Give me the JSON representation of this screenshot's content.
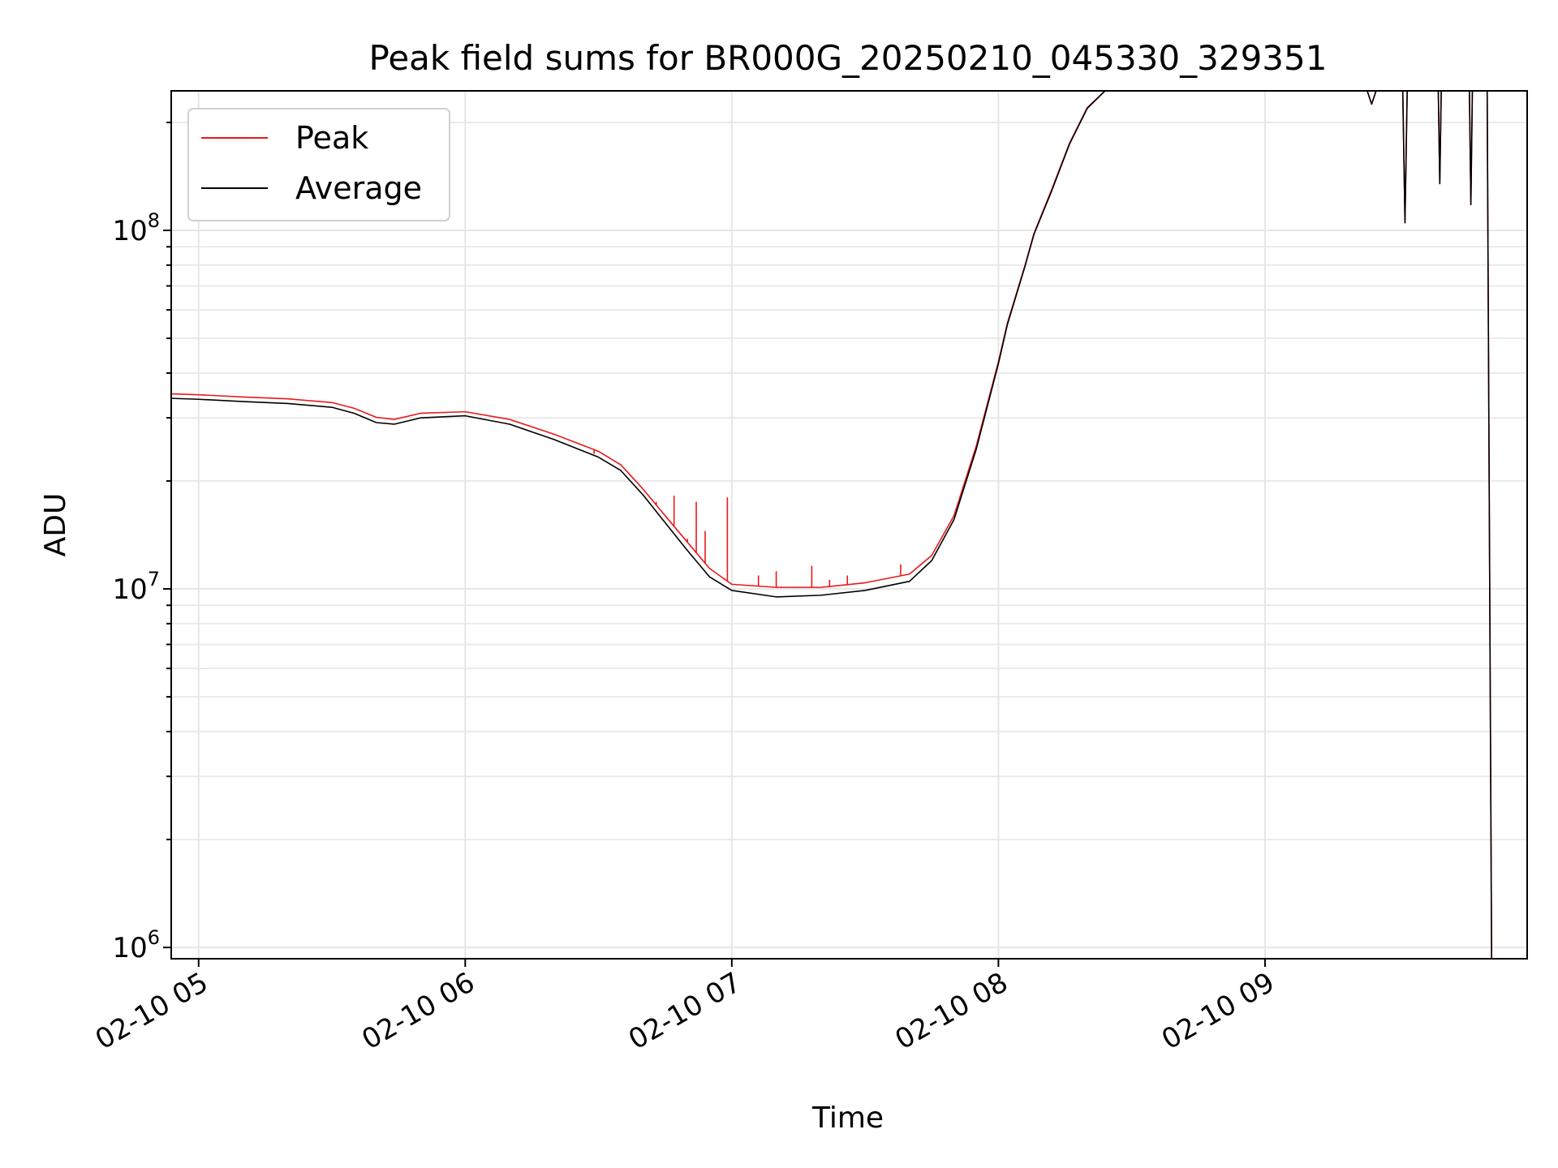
{
  "chart_data": {
    "type": "line",
    "title": "Peak field sums for BR000G_20250210_045330_329351",
    "xlabel": "Time",
    "ylabel": "ADU",
    "yscale": "log",
    "ylim": [
      930000,
      245000000
    ],
    "xlim": [
      "02-10 04:53:50",
      "02-10 09:59:00"
    ],
    "grid": true,
    "legend_position": "top-left",
    "xticks": [
      {
        "value": "02-10 05:00",
        "label": "02-10 05"
      },
      {
        "value": "02-10 06:00",
        "label": "02-10 06"
      },
      {
        "value": "02-10 07:00",
        "label": "02-10 07"
      },
      {
        "value": "02-10 08:00",
        "label": "02-10 08"
      },
      {
        "value": "02-10 09:00",
        "label": "02-10 09"
      }
    ],
    "yticks": [
      {
        "value": 1000000,
        "base": "10",
        "exp": "6"
      },
      {
        "value": 10000000,
        "base": "10",
        "exp": "7"
      },
      {
        "value": 100000000,
        "base": "10",
        "exp": "8"
      }
    ],
    "series": [
      {
        "name": "Peak",
        "color": "#e8191c",
        "points": [
          [
            "02-10 04:54",
            35000000
          ],
          [
            "02-10 05:00",
            34800000
          ],
          [
            "02-10 05:10",
            34300000
          ],
          [
            "02-10 05:20",
            33900000
          ],
          [
            "02-10 05:30",
            33100000
          ],
          [
            "02-10 05:35",
            31900000
          ],
          [
            "02-10 05:40",
            30100000
          ],
          [
            "02-10 05:44",
            29700000
          ],
          [
            "02-10 05:50",
            30900000
          ],
          [
            "02-10 06:00",
            31200000
          ],
          [
            "02-10 06:10",
            29700000
          ],
          [
            "02-10 06:20",
            27000000
          ],
          [
            "02-10 06:30",
            24200000
          ],
          [
            "02-10 06:35",
            22200000
          ],
          [
            "02-10 06:40",
            19000000
          ],
          [
            "02-10 06:45",
            16000000
          ],
          [
            "02-10 06:50",
            13500000
          ],
          [
            "02-10 06:55",
            11400000
          ],
          [
            "02-10 07:00",
            10300000
          ],
          [
            "02-10 07:10",
            10100000
          ],
          [
            "02-10 07:20",
            10100000
          ],
          [
            "02-10 07:30",
            10400000
          ],
          [
            "02-10 07:40",
            11000000
          ],
          [
            "02-10 07:45",
            12400000
          ],
          [
            "02-10 07:50",
            16000000
          ],
          [
            "02-10 07:55",
            25000000
          ],
          [
            "02-10 08:00",
            43000000
          ],
          [
            "02-10 08:02",
            55000000
          ],
          [
            "02-10 08:06",
            80000000
          ],
          [
            "02-10 08:08",
            98000000
          ],
          [
            "02-10 08:12",
            130000000
          ],
          [
            "02-10 08:16",
            175000000
          ],
          [
            "02-10 08:20",
            220000000
          ],
          [
            "02-10 08:24",
            245000000
          ],
          [
            "02-10 09:23",
            245000000
          ],
          [
            "02-10 09:24",
            225000000
          ],
          [
            "02-10 09:25",
            245000000
          ],
          [
            "02-10 09:31",
            245000000
          ],
          [
            "02-10 09:31:30",
            105000000
          ],
          [
            "02-10 09:32",
            245000000
          ],
          [
            "02-10 09:39",
            245000000
          ],
          [
            "02-10 09:39:20",
            135000000
          ],
          [
            "02-10 09:39:40",
            245000000
          ],
          [
            "02-10 09:46",
            245000000
          ],
          [
            "02-10 09:46:20",
            118000000
          ],
          [
            "02-10 09:46:40",
            245000000
          ],
          [
            "02-10 09:50",
            245000000
          ],
          [
            "02-10 09:51",
            930000
          ],
          [
            "02-10 09:59",
            930000
          ]
        ]
      },
      {
        "name": "Average",
        "color": "#000000",
        "points": [
          [
            "02-10 04:54",
            34000000
          ],
          [
            "02-10 05:00",
            33800000
          ],
          [
            "02-10 05:10",
            33300000
          ],
          [
            "02-10 05:20",
            32900000
          ],
          [
            "02-10 05:30",
            32100000
          ],
          [
            "02-10 05:35",
            30900000
          ],
          [
            "02-10 05:40",
            29100000
          ],
          [
            "02-10 05:44",
            28800000
          ],
          [
            "02-10 05:50",
            30000000
          ],
          [
            "02-10 06:00",
            30400000
          ],
          [
            "02-10 06:10",
            28800000
          ],
          [
            "02-10 06:20",
            26100000
          ],
          [
            "02-10 06:30",
            23300000
          ],
          [
            "02-10 06:35",
            21400000
          ],
          [
            "02-10 06:40",
            18300000
          ],
          [
            "02-10 06:45",
            15300000
          ],
          [
            "02-10 06:50",
            12800000
          ],
          [
            "02-10 06:55",
            10800000
          ],
          [
            "02-10 07:00",
            9900000
          ],
          [
            "02-10 07:10",
            9500000
          ],
          [
            "02-10 07:20",
            9600000
          ],
          [
            "02-10 07:30",
            9900000
          ],
          [
            "02-10 07:40",
            10500000
          ],
          [
            "02-10 07:45",
            12000000
          ],
          [
            "02-10 07:50",
            15600000
          ],
          [
            "02-10 07:55",
            24500000
          ],
          [
            "02-10 08:00",
            42500000
          ],
          [
            "02-10 08:02",
            54500000
          ],
          [
            "02-10 08:06",
            79500000
          ],
          [
            "02-10 08:08",
            97500000
          ],
          [
            "02-10 08:12",
            129000000
          ],
          [
            "02-10 08:16",
            174000000
          ],
          [
            "02-10 08:20",
            219000000
          ],
          [
            "02-10 08:24",
            245000000
          ],
          [
            "02-10 09:23",
            245000000
          ],
          [
            "02-10 09:24",
            225000000
          ],
          [
            "02-10 09:25",
            245000000
          ],
          [
            "02-10 09:31",
            245000000
          ],
          [
            "02-10 09:31:30",
            105000000
          ],
          [
            "02-10 09:32",
            245000000
          ],
          [
            "02-10 09:39",
            245000000
          ],
          [
            "02-10 09:39:20",
            135000000
          ],
          [
            "02-10 09:39:40",
            245000000
          ],
          [
            "02-10 09:46",
            245000000
          ],
          [
            "02-10 09:46:20",
            118000000
          ],
          [
            "02-10 09:46:40",
            245000000
          ],
          [
            "02-10 09:50",
            245000000
          ],
          [
            "02-10 09:51",
            930000
          ],
          [
            "02-10 09:59",
            930000
          ]
        ]
      }
    ],
    "spikes": {
      "series": "Peak",
      "points": [
        [
          "02-10 06:29",
          23800000
        ],
        [
          "02-10 06:43",
          17500000
        ],
        [
          "02-10 06:47",
          18200000
        ],
        [
          "02-10 06:50",
          13800000
        ],
        [
          "02-10 06:52",
          17500000
        ],
        [
          "02-10 06:54",
          14500000
        ],
        [
          "02-10 06:59",
          18000000
        ],
        [
          "02-10 07:06",
          10900000
        ],
        [
          "02-10 07:10",
          11200000
        ],
        [
          "02-10 07:18",
          11600000
        ],
        [
          "02-10 07:22",
          10600000
        ],
        [
          "02-10 07:26",
          10900000
        ],
        [
          "02-10 07:38",
          11700000
        ]
      ]
    }
  }
}
